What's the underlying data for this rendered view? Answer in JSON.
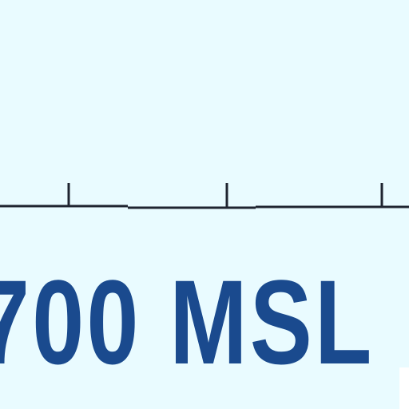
{
  "sign": {
    "label": "700 MSL",
    "text_color": "#1a4a8e",
    "background_color": "#e9fbff",
    "line_color": "#1f2430"
  }
}
